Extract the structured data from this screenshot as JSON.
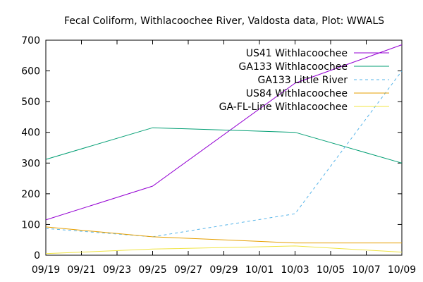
{
  "chart_data": {
    "type": "line",
    "title": "Fecal Coliform, Withlacoochee River, Valdosta data, Plot: WWALS",
    "xlabel": "",
    "ylabel": "",
    "ylim": [
      0,
      700
    ],
    "yticks": [
      "0",
      "100",
      "200",
      "300",
      "400",
      "500",
      "600",
      "700"
    ],
    "xticks": [
      "09/19",
      "09/21",
      "09/23",
      "09/25",
      "09/27",
      "09/29",
      "10/01",
      "10/03",
      "10/05",
      "10/07",
      "10/09"
    ],
    "xlim": [
      "09/19",
      "10/09"
    ],
    "grid": false,
    "legend_position": "top-right",
    "series": [
      {
        "name": "US41 Withlacoochee",
        "color": "#9400d3",
        "dash": "solid",
        "x": [
          "09/19",
          "09/25",
          "10/03",
          "10/09"
        ],
        "values": [
          115,
          225,
          560,
          685
        ]
      },
      {
        "name": "GA133 Withlacoochee",
        "color": "#009e73",
        "dash": "solid",
        "x": [
          "09/19",
          "09/25",
          "10/03",
          "10/09"
        ],
        "values": [
          312,
          415,
          400,
          300
        ]
      },
      {
        "name": "GA133 Little River",
        "color": "#56b4e9",
        "dash": "dashed",
        "x": [
          "09/19",
          "09/25",
          "10/03",
          "10/09"
        ],
        "values": [
          87,
          60,
          135,
          600
        ]
      },
      {
        "name": "US84 Withlacoochee",
        "color": "#e69f00",
        "dash": "solid",
        "x": [
          "09/19",
          "09/25",
          "10/03",
          "10/09"
        ],
        "values": [
          92,
          60,
          40,
          40
        ]
      },
      {
        "name": "GA-FL-Line Withlacoochee",
        "color": "#f0e442",
        "dash": "solid",
        "x": [
          "09/19",
          "09/25",
          "10/03",
          "10/09"
        ],
        "values": [
          5,
          20,
          30,
          10
        ]
      }
    ]
  }
}
